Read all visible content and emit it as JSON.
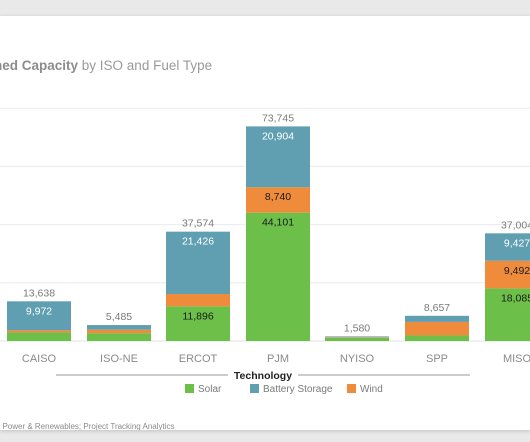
{
  "header": {
    "title_bold": "ned Capacity",
    "title_rest": " by ISO and Fuel Type"
  },
  "footer": {
    "source": ": Power & Renewables; Project Tracking Analytics"
  },
  "colors": {
    "solar": "#6cc04a",
    "battery": "#5f9fb1",
    "wind": "#ef8c3c",
    "grid": "#ececec",
    "background": "#ffffff"
  },
  "chart_data": {
    "type": "bar",
    "stacked": true,
    "title": "ned Capacity by ISO and Fuel Type",
    "xlabel": "Technology",
    "ylabel": "",
    "categories": [
      "CAISO",
      "ISO-NE",
      "ERCOT",
      "PJM",
      "NYISO",
      "SPP",
      "MISO"
    ],
    "ylim": [
      0,
      80000
    ],
    "grid": true,
    "legend_position": "bottom",
    "series": [
      {
        "name": "Solar",
        "values": [
          2900,
          2700,
          11896,
          44101,
          1100,
          1900,
          18085
        ],
        "labels": [
          "",
          "",
          "11,896",
          "44,101",
          "",
          "",
          "18,085"
        ]
      },
      {
        "name": "Wind",
        "values": [
          766,
          1200,
          4252,
          8740,
          200,
          4657,
          9492
        ],
        "labels": [
          "",
          "",
          "",
          "8,740",
          "",
          "",
          "9,492"
        ]
      },
      {
        "name": "Battery Storage",
        "values": [
          9972,
          1585,
          21426,
          20904,
          280,
          2100,
          9427
        ],
        "labels": [
          "9,972",
          "",
          "21,426",
          "20,904",
          "",
          "",
          "9,427"
        ]
      }
    ],
    "totals": [
      "13,638",
      "5,485",
      "37,574",
      "73,745",
      "1,580",
      "8,657",
      "37,004"
    ],
    "legend": [
      {
        "name": "Solar",
        "color": "#6cc04a"
      },
      {
        "name": "Battery Storage",
        "color": "#5f9fb1"
      },
      {
        "name": "Wind",
        "color": "#ef8c3c"
      }
    ]
  }
}
